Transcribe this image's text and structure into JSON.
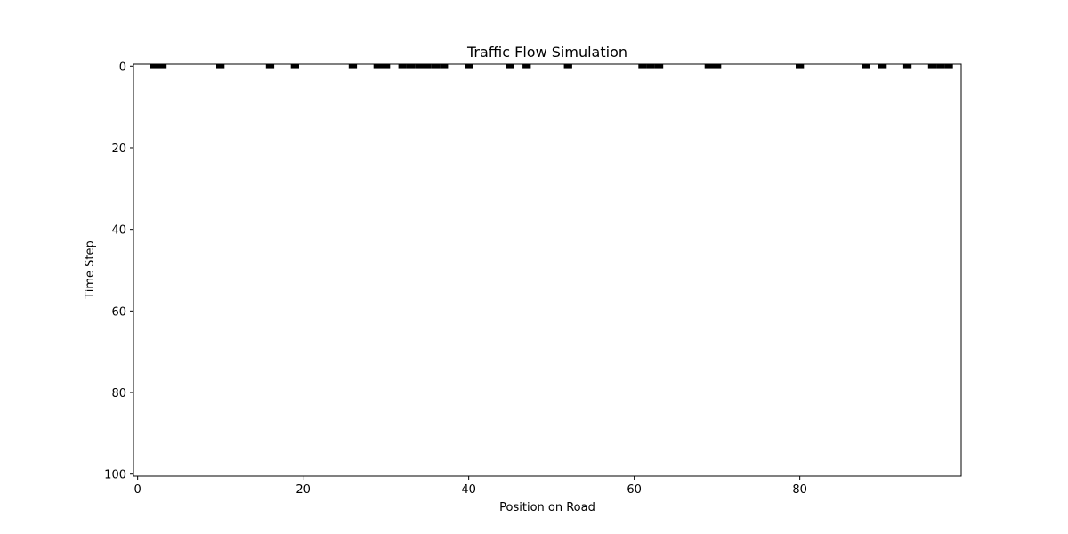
{
  "chart_data": {
    "type": "heatmap",
    "title": "Traffic Flow Simulation",
    "xlabel": "Position on Road",
    "ylabel": "Time Step",
    "xlim": [
      -0.5,
      99.5
    ],
    "ylim": [
      100.5,
      -0.5
    ],
    "x_ticks": [
      0,
      20,
      40,
      60,
      80
    ],
    "y_ticks": [
      0,
      20,
      40,
      60,
      80,
      100
    ],
    "colormap": {
      "occupied": "#000000",
      "empty": "#ffffff"
    },
    "occupied_cells": [
      {
        "t": 0,
        "x": 2
      },
      {
        "t": 0,
        "x": 3
      },
      {
        "t": 0,
        "x": 10
      },
      {
        "t": 0,
        "x": 16
      },
      {
        "t": 0,
        "x": 19
      },
      {
        "t": 0,
        "x": 26
      },
      {
        "t": 0,
        "x": 29
      },
      {
        "t": 0,
        "x": 30
      },
      {
        "t": 0,
        "x": 32
      },
      {
        "t": 0,
        "x": 33
      },
      {
        "t": 0,
        "x": 34
      },
      {
        "t": 0,
        "x": 35
      },
      {
        "t": 0,
        "x": 36
      },
      {
        "t": 0,
        "x": 37
      },
      {
        "t": 0,
        "x": 40
      },
      {
        "t": 0,
        "x": 45
      },
      {
        "t": 0,
        "x": 47
      },
      {
        "t": 0,
        "x": 52
      },
      {
        "t": 0,
        "x": 61
      },
      {
        "t": 0,
        "x": 62
      },
      {
        "t": 0,
        "x": 63
      },
      {
        "t": 0,
        "x": 69
      },
      {
        "t": 0,
        "x": 70
      },
      {
        "t": 0,
        "x": 80
      },
      {
        "t": 0,
        "x": 88
      },
      {
        "t": 0,
        "x": 90
      },
      {
        "t": 0,
        "x": 93
      },
      {
        "t": 0,
        "x": 96
      },
      {
        "t": 0,
        "x": 97
      },
      {
        "t": 0,
        "x": 98
      }
    ],
    "grid": false,
    "legend": "none"
  }
}
